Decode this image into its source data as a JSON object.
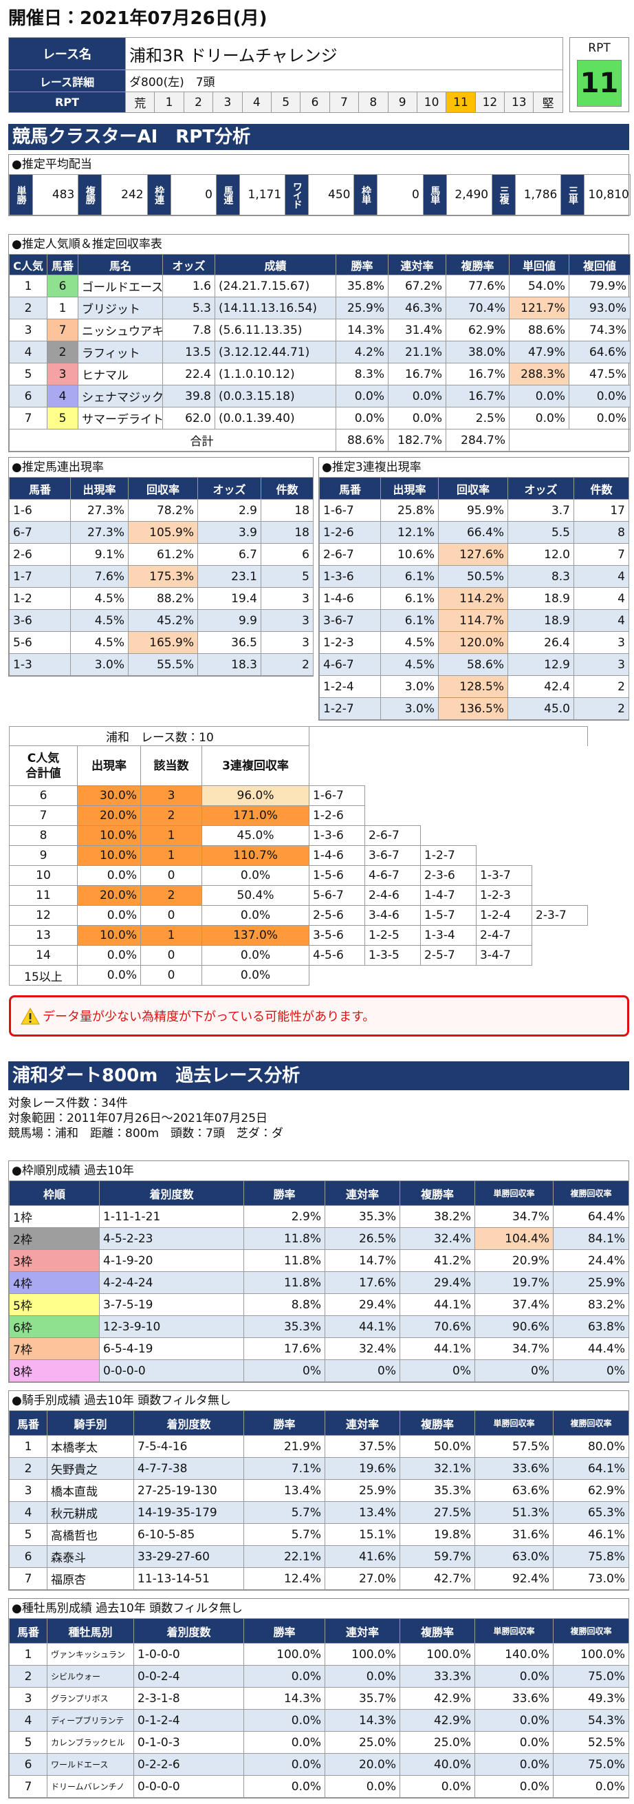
{
  "header": {
    "date": "開催日：2021年07月26日(月)"
  },
  "race": {
    "name_label": "レース名",
    "name": "浦和3R ドリームチャレンジ",
    "detail_label": "レース詳細",
    "detail": "ダ800(左)　7頭",
    "rpt_label": "RPT",
    "rpt_scale": [
      "荒",
      "1",
      "2",
      "3",
      "4",
      "5",
      "6",
      "7",
      "8",
      "9",
      "10",
      "11",
      "12",
      "13",
      "堅"
    ],
    "rpt_box_label": "RPT",
    "rpt": "11"
  },
  "rpt_section": {
    "title": "競馬クラスターAI　RPT分析"
  },
  "payout": {
    "title": "●推定平均配当",
    "items": [
      [
        "単勝",
        "483"
      ],
      [
        "複勝",
        "242"
      ],
      [
        "枠連",
        "0"
      ],
      [
        "馬連",
        "1,171"
      ],
      [
        "ワイド",
        "450"
      ],
      [
        "枠単",
        "0"
      ],
      [
        "馬単",
        "2,490"
      ],
      [
        "三複",
        "1,786"
      ],
      [
        "三単",
        "10,810"
      ]
    ]
  },
  "ranking": {
    "title": "●推定人気順＆推定回収率表",
    "header": [
      "C人気",
      "馬番",
      "馬名",
      "オッズ",
      "成績",
      "勝率",
      "連対率",
      "複勝率",
      "単回値",
      "複回値"
    ],
    "rows": [
      [
        "1",
        "6",
        "ゴールドエース",
        "1.6",
        "(24.21.7.15.67)",
        "35.8%",
        "67.2%",
        "77.6%",
        "54.0%",
        "79.9%"
      ],
      [
        "2",
        "1",
        "ブリジット",
        "5.3",
        "(14.11.13.16.54)",
        "25.9%",
        "46.3%",
        "70.4%",
        "121.7%",
        "93.0%"
      ],
      [
        "3",
        "7",
        "ニッシュウアキラ",
        "7.8",
        "(5.6.11.13.35)",
        "14.3%",
        "31.4%",
        "62.9%",
        "88.6%",
        "74.3%"
      ],
      [
        "4",
        "2",
        "ラフィット",
        "13.5",
        "(3.12.12.44.71)",
        "4.2%",
        "21.1%",
        "38.0%",
        "47.9%",
        "64.6%"
      ],
      [
        "5",
        "3",
        "ヒナマル",
        "22.4",
        "(1.1.0.10.12)",
        "8.3%",
        "16.7%",
        "16.7%",
        "288.3%",
        "47.5%"
      ],
      [
        "6",
        "4",
        "シェナマジック",
        "39.8",
        "(0.0.3.15.18)",
        "0.0%",
        "0.0%",
        "16.7%",
        "0.0%",
        "0.0%"
      ],
      [
        "7",
        "5",
        "サマーデライト",
        "62.0",
        "(0.0.1.39.40)",
        "0.0%",
        "0.0%",
        "2.5%",
        "0.0%",
        "0.0%"
      ]
    ],
    "total_label": "合計",
    "total": [
      "88.6%",
      "182.7%",
      "284.7%"
    ]
  },
  "umaren": {
    "title": "●推定馬連出現率",
    "header": [
      "馬番",
      "出現率",
      "回収率",
      "オッズ",
      "件数"
    ],
    "rows": [
      [
        "1-6",
        "27.3%",
        "78.2%",
        "2.9",
        "18"
      ],
      [
        "6-7",
        "27.3%",
        "105.9%",
        "3.9",
        "18"
      ],
      [
        "2-6",
        "9.1%",
        "61.2%",
        "6.7",
        "6"
      ],
      [
        "1-7",
        "7.6%",
        "175.3%",
        "23.1",
        "5"
      ],
      [
        "1-2",
        "4.5%",
        "88.2%",
        "19.4",
        "3"
      ],
      [
        "3-6",
        "4.5%",
        "45.2%",
        "9.9",
        "3"
      ],
      [
        "5-6",
        "4.5%",
        "165.9%",
        "36.5",
        "3"
      ],
      [
        "1-3",
        "3.0%",
        "55.5%",
        "18.3",
        "2"
      ]
    ]
  },
  "sanrenpuku": {
    "title": "●推定3連複出現率",
    "header": [
      "馬番",
      "出現率",
      "回収率",
      "オッズ",
      "件数"
    ],
    "rows": [
      [
        "1-6-7",
        "25.8%",
        "95.9%",
        "3.7",
        "17"
      ],
      [
        "1-2-6",
        "12.1%",
        "66.4%",
        "5.5",
        "8"
      ],
      [
        "2-6-7",
        "10.6%",
        "127.6%",
        "12.0",
        "7"
      ],
      [
        "1-3-6",
        "6.1%",
        "50.5%",
        "8.3",
        "4"
      ],
      [
        "1-4-6",
        "6.1%",
        "114.2%",
        "18.9",
        "4"
      ],
      [
        "3-6-7",
        "6.1%",
        "114.7%",
        "18.9",
        "4"
      ],
      [
        "1-2-3",
        "4.5%",
        "120.0%",
        "26.4",
        "3"
      ],
      [
        "4-6-7",
        "4.5%",
        "58.6%",
        "12.9",
        "3"
      ],
      [
        "1-2-4",
        "3.0%",
        "128.5%",
        "42.4",
        "2"
      ],
      [
        "1-2-7",
        "3.0%",
        "136.5%",
        "45.0",
        "2"
      ]
    ]
  },
  "c_table": {
    "title": "浦和　レース数：10",
    "header": [
      "C人気\n合計値",
      "出現率",
      "該当数",
      "3連複回収率"
    ],
    "rows": [
      {
        "values": [
          "6",
          "30.0%",
          "3",
          "96.0%"
        ],
        "combos": [
          "1-6-7"
        ]
      },
      {
        "values": [
          "7",
          "20.0%",
          "2",
          "171.0%"
        ],
        "combos": [
          "1-2-6"
        ]
      },
      {
        "values": [
          "8",
          "10.0%",
          "1",
          "45.0%"
        ],
        "combos": [
          "1-3-6",
          "2-6-7"
        ]
      },
      {
        "values": [
          "9",
          "10.0%",
          "1",
          "110.7%"
        ],
        "combos": [
          "1-4-6",
          "3-6-7",
          "1-2-7"
        ]
      },
      {
        "values": [
          "10",
          "0.0%",
          "0",
          "0.0%"
        ],
        "combos": [
          "1-5-6",
          "4-6-7",
          "2-3-6",
          "1-3-7"
        ]
      },
      {
        "values": [
          "11",
          "20.0%",
          "2",
          "50.4%"
        ],
        "combos": [
          "5-6-7",
          "2-4-6",
          "1-4-7",
          "1-2-3"
        ]
      },
      {
        "values": [
          "12",
          "0.0%",
          "0",
          "0.0%"
        ],
        "combos": [
          "2-5-6",
          "3-4-6",
          "1-5-7",
          "1-2-4",
          "2-3-7"
        ]
      },
      {
        "values": [
          "13",
          "10.0%",
          "1",
          "137.0%"
        ],
        "combos": [
          "3-5-6",
          "1-2-5",
          "1-3-4",
          "2-4-7"
        ]
      },
      {
        "values": [
          "14",
          "0.0%",
          "0",
          "0.0%"
        ],
        "combos": [
          "4-5-6",
          "1-3-5",
          "2-5-7",
          "3-4-7"
        ]
      },
      {
        "values": [
          "15以上",
          "0.0%",
          "0",
          "0.0%"
        ],
        "combos": []
      }
    ]
  },
  "warning": "データ量が少ない為精度が下がっている可能性があります。",
  "past": {
    "title": "浦和ダート800m　過去レース分析",
    "info": [
      "対象レース件数：34件",
      "対象範囲：2011年07月26日～2021年07月25日",
      "競馬場：浦和　距離：800m　頭数：7頭　芝ダ：ダ"
    ],
    "waku": {
      "title": "●枠順別成績 過去10年",
      "header": [
        "枠順",
        "着別度数",
        "勝率",
        "連対率",
        "複勝率",
        "単勝回収率",
        "複勝回収率"
      ],
      "rows": [
        [
          "1枠",
          "1-11-1-21",
          "2.9%",
          "35.3%",
          "38.2%",
          "34.7%",
          "64.4%"
        ],
        [
          "2枠",
          "4-5-2-23",
          "11.8%",
          "26.5%",
          "32.4%",
          "104.4%",
          "84.1%"
        ],
        [
          "3枠",
          "4-1-9-20",
          "11.8%",
          "14.7%",
          "41.2%",
          "20.9%",
          "24.4%"
        ],
        [
          "4枠",
          "4-2-4-24",
          "11.8%",
          "17.6%",
          "29.4%",
          "19.7%",
          "25.9%"
        ],
        [
          "5枠",
          "3-7-5-19",
          "8.8%",
          "29.4%",
          "44.1%",
          "37.4%",
          "83.2%"
        ],
        [
          "6枠",
          "12-3-9-10",
          "35.3%",
          "44.1%",
          "70.6%",
          "90.6%",
          "63.8%"
        ],
        [
          "7枠",
          "6-5-4-19",
          "17.6%",
          "32.4%",
          "44.1%",
          "34.7%",
          "44.4%"
        ],
        [
          "8枠",
          "0-0-0-0",
          "0%",
          "0%",
          "0%",
          "0%",
          "0%"
        ]
      ]
    },
    "jockey": {
      "title": "●騎手別成績 過去10年 頭数フィルタ無し",
      "header": [
        "馬番",
        "騎手別",
        "着別度数",
        "勝率",
        "連対率",
        "複勝率",
        "単勝回収率",
        "複勝回収率"
      ],
      "rows": [
        [
          "1",
          "本橋孝太",
          "7-5-4-16",
          "21.9%",
          "37.5%",
          "50.0%",
          "57.5%",
          "80.0%"
        ],
        [
          "2",
          "矢野貴之",
          "4-7-7-38",
          "7.1%",
          "19.6%",
          "32.1%",
          "33.6%",
          "64.1%"
        ],
        [
          "3",
          "橋本直哉",
          "27-25-19-130",
          "13.4%",
          "25.9%",
          "35.3%",
          "63.6%",
          "62.9%"
        ],
        [
          "4",
          "秋元耕成",
          "14-19-35-179",
          "5.7%",
          "13.4%",
          "27.5%",
          "51.3%",
          "65.3%"
        ],
        [
          "5",
          "高橋哲也",
          "6-10-5-85",
          "5.7%",
          "15.1%",
          "19.8%",
          "31.6%",
          "46.1%"
        ],
        [
          "6",
          "森泰斗",
          "33-29-27-60",
          "22.1%",
          "41.6%",
          "59.7%",
          "63.0%",
          "75.8%"
        ],
        [
          "7",
          "福原杏",
          "11-13-14-51",
          "12.4%",
          "27.0%",
          "42.7%",
          "92.4%",
          "73.0%"
        ]
      ]
    },
    "sire": {
      "title": "●種牡馬別成績 過去10年 頭数フィルタ無し",
      "header": [
        "馬番",
        "種牡馬別",
        "着別度数",
        "勝率",
        "連対率",
        "複勝率",
        "単勝回収率",
        "複勝回収率"
      ],
      "rows": [
        [
          "1",
          "ヴァンキッシュラン",
          "1-0-0-0",
          "100.0%",
          "100.0%",
          "100.0%",
          "140.0%",
          "100.0%"
        ],
        [
          "2",
          "シビルウォー",
          "0-0-2-4",
          "0.0%",
          "0.0%",
          "33.3%",
          "0.0%",
          "75.0%"
        ],
        [
          "3",
          "グランプリボス",
          "2-3-1-8",
          "14.3%",
          "35.7%",
          "42.9%",
          "33.6%",
          "49.3%"
        ],
        [
          "4",
          "ディープブリランテ",
          "0-1-2-4",
          "0.0%",
          "14.3%",
          "42.9%",
          "0.0%",
          "54.3%"
        ],
        [
          "5",
          "カレンブラックヒル",
          "0-1-0-3",
          "0.0%",
          "25.0%",
          "25.0%",
          "0.0%",
          "52.5%"
        ],
        [
          "6",
          "ワールドエース",
          "0-2-2-6",
          "0.0%",
          "20.0%",
          "40.0%",
          "0.0%",
          "75.0%"
        ],
        [
          "7",
          "ドリームバレンチノ",
          "0-0-0-0",
          "0.0%",
          "0.0%",
          "0.0%",
          "0.0%",
          "0.0%"
        ]
      ]
    }
  }
}
